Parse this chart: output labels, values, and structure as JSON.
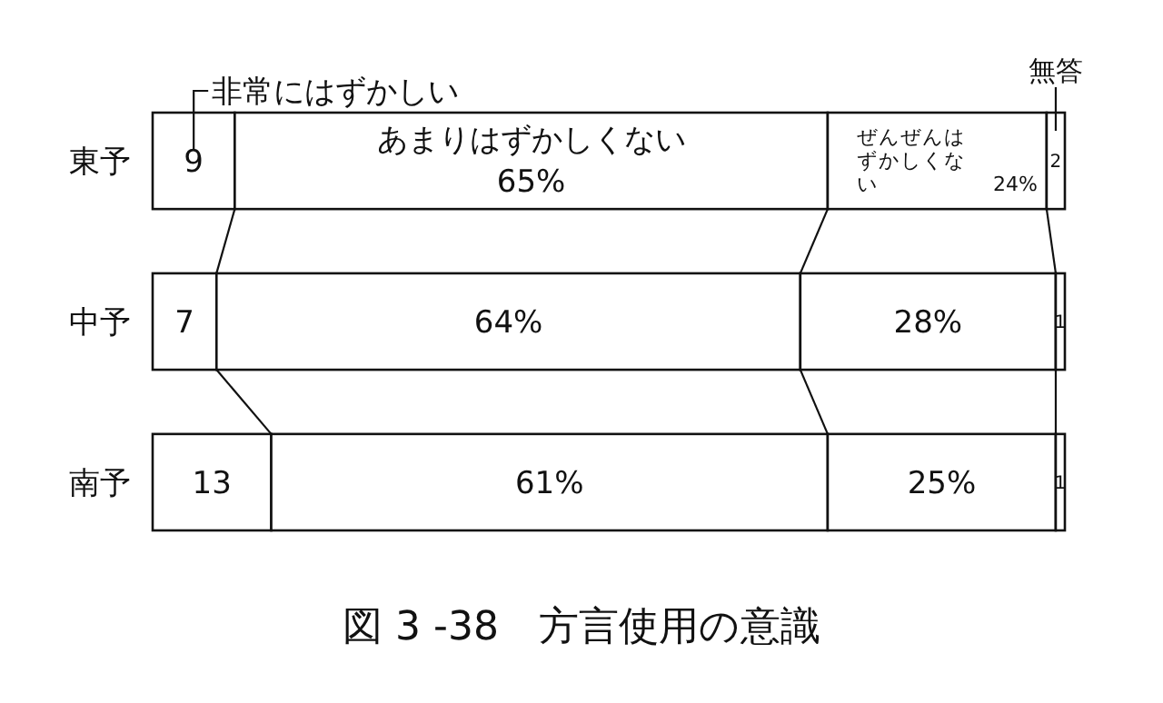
{
  "chart_data": {
    "type": "bar",
    "orientation": "horizontal",
    "stacked": true,
    "title": "図 3 -38　方言使用の意識",
    "categories": [
      "東予",
      "中予",
      "南予"
    ],
    "xlim": [
      0,
      100
    ],
    "tick_labels": "y",
    "series": [
      {
        "name": "非常にはずかしい",
        "color": "#ffffff",
        "values": [
          9,
          7,
          13
        ],
        "value_labels": [
          "9",
          "7",
          "13"
        ]
      },
      {
        "name": "あまりはずかしくない",
        "color": "#ffffff",
        "values": [
          65,
          64,
          61
        ],
        "value_labels": [
          "65%",
          "64%",
          "61%"
        ]
      },
      {
        "name": "ぜんぜんはずかしくない",
        "color": "#ffffff",
        "values": [
          24,
          28,
          25
        ],
        "value_labels": [
          "24%",
          "28%",
          "25%"
        ]
      },
      {
        "name": "無答",
        "color": "#ffffff",
        "values": [
          2,
          1,
          1
        ],
        "value_labels": [
          "2",
          "1",
          "1"
        ]
      }
    ]
  }
}
